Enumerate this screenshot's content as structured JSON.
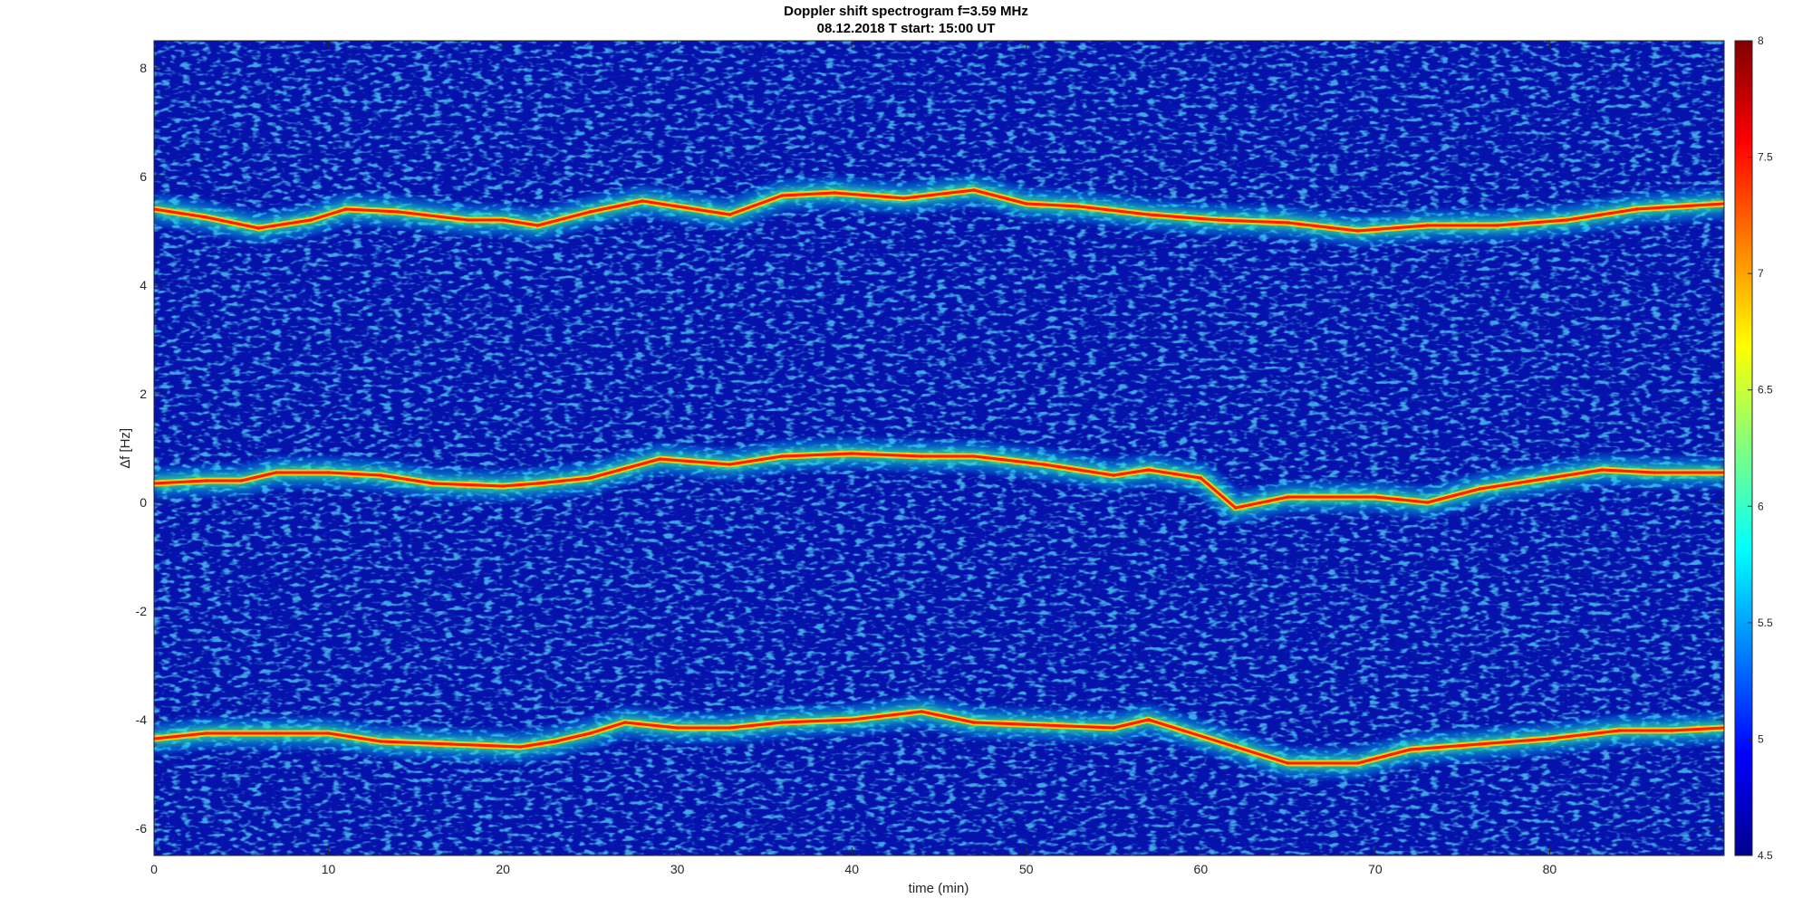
{
  "chart_data": {
    "type": "heatmap",
    "title": "Doppler shift spectrogram f=3.59 MHz",
    "subtitle": "08.12.2018   T start: 15:00 UT",
    "xlabel": "time (min)",
    "ylabel": "∆f [Hz]",
    "xlim": [
      0,
      90
    ],
    "ylim": [
      -6.5,
      8.5
    ],
    "x_ticks": [
      0,
      10,
      20,
      30,
      40,
      50,
      60,
      70,
      80
    ],
    "y_ticks": [
      -6,
      -4,
      -2,
      0,
      2,
      4,
      6,
      8
    ],
    "colorbar": {
      "colormap": "jet",
      "range": [
        4.5,
        8
      ],
      "ticks": [
        "4.5",
        "5",
        "5.5",
        "6",
        "6.5",
        "7",
        "7.5",
        "8"
      ]
    },
    "series": [
      {
        "x": [
          0,
          3,
          5,
          7,
          10,
          13,
          16,
          20,
          22,
          25,
          29,
          33,
          36,
          40,
          44,
          47,
          51,
          55,
          57,
          60,
          62,
          65,
          70,
          73,
          76,
          80,
          83,
          86,
          90
        ],
        "y": [
          0.35,
          0.4,
          0.4,
          0.55,
          0.55,
          0.5,
          0.35,
          0.3,
          0.35,
          0.45,
          0.8,
          0.7,
          0.85,
          0.9,
          0.85,
          0.85,
          0.7,
          0.5,
          0.6,
          0.45,
          -0.1,
          0.1,
          0.1,
          0.0,
          0.25,
          0.45,
          0.6,
          0.55,
          0.55
        ]
      },
      {
        "x": [
          0,
          3,
          7,
          10,
          13,
          17,
          21,
          23,
          25,
          27,
          30,
          33,
          36,
          40,
          44,
          47,
          51,
          55,
          57,
          59,
          62,
          65,
          69,
          72,
          76,
          80,
          84,
          87,
          90
        ],
        "y": [
          -4.35,
          -4.25,
          -4.25,
          -4.25,
          -4.4,
          -4.45,
          -4.5,
          -4.4,
          -4.25,
          -4.05,
          -4.15,
          -4.15,
          -4.05,
          -4.0,
          -3.85,
          -4.05,
          -4.1,
          -4.15,
          -4.0,
          -4.2,
          -4.5,
          -4.8,
          -4.8,
          -4.55,
          -4.45,
          -4.35,
          -4.2,
          -4.2,
          -4.15
        ]
      },
      {
        "x": [
          0,
          3,
          6,
          9,
          11,
          14,
          18,
          20,
          22,
          25,
          28,
          30,
          33,
          36,
          39,
          43,
          47,
          50,
          53,
          57,
          61,
          65,
          69,
          73,
          77,
          81,
          85,
          90
        ],
        "y": [
          5.4,
          5.25,
          5.05,
          5.2,
          5.4,
          5.35,
          5.2,
          5.2,
          5.1,
          5.35,
          5.55,
          5.45,
          5.3,
          5.65,
          5.7,
          5.6,
          5.75,
          5.5,
          5.45,
          5.3,
          5.2,
          5.15,
          5.0,
          5.1,
          5.1,
          5.2,
          5.4,
          5.5
        ]
      }
    ]
  }
}
